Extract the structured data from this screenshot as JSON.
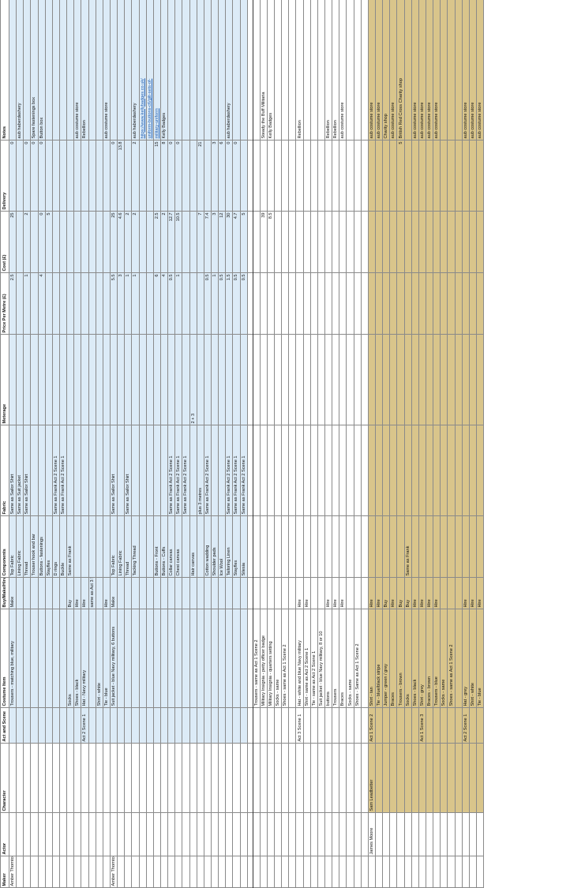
{
  "headers": [
    "Maker",
    "Actor",
    "Character",
    "Act and Scene",
    "Costume Item",
    "Buy/Make/Hire",
    "Components",
    "Fabric",
    "Meterage",
    "Price Per Metre (£)",
    "Cost (£)",
    "Delivery",
    "Notes"
  ],
  "rows": [
    {
      "s": "blue",
      "c": [
        "Amber Thornton",
        "",
        "",
        "",
        "Trousers - matching blue, military",
        "Make",
        "Top Fabric",
        "Same as Sailor Shirt",
        "",
        "2.5",
        "25",
        "0",
        ""
      ]
    },
    {
      "s": "blue",
      "c": [
        "",
        "",
        "",
        "",
        "",
        "",
        "Lining Fabric",
        "Same as Suit jacket",
        "",
        "",
        "",
        "",
        "aub haberdashery"
      ]
    },
    {
      "s": "blue",
      "c": [
        "",
        "",
        "",
        "",
        "",
        "",
        "Thread",
        "Same as Sailor Shirt",
        "",
        "1",
        "2",
        "0",
        ""
      ]
    },
    {
      "s": "blue",
      "c": [
        "",
        "",
        "",
        "",
        "",
        "",
        "Trouser hook and bar",
        "",
        "",
        "",
        "",
        "0",
        "Spare fastenings box"
      ]
    },
    {
      "s": "blue",
      "c": [
        "",
        "",
        "",
        "",
        "",
        "",
        "Buttons - fastenings",
        "",
        "",
        "4",
        "0",
        "0",
        "Button box"
      ]
    },
    {
      "s": "blue",
      "c": [
        "",
        "",
        "",
        "",
        "",
        "",
        "Stayflex",
        "",
        "",
        "",
        "5",
        "",
        ""
      ]
    },
    {
      "s": "blue",
      "c": [
        "",
        "",
        "",
        "",
        "",
        "",
        "D rings",
        "Same as Frank Act 2 Scene 1",
        "",
        "",
        "",
        "",
        ""
      ]
    },
    {
      "s": "blue",
      "c": [
        "",
        "",
        "",
        "",
        "",
        "",
        "Buckle",
        "Same as Frank Act 2 Scene 1",
        "",
        "",
        "",
        "",
        ""
      ]
    },
    {
      "s": "blue",
      "c": [
        "",
        "",
        "",
        "",
        "Socks",
        "Buy",
        "Same as Frank",
        "",
        "",
        "",
        "",
        "",
        ""
      ]
    },
    {
      "s": "blue",
      "c": [
        "",
        "",
        "",
        "",
        "Shoes - black",
        "Hire",
        "",
        "",
        "",
        "",
        "",
        "",
        "aub costume store"
      ]
    },
    {
      "s": "blue",
      "c": [
        "",
        "",
        "",
        "Act 2 Scene 1",
        "Hat - Navy military",
        "Hire",
        "",
        "",
        "",
        "",
        "",
        "",
        "Rebellion"
      ]
    },
    {
      "s": "blue",
      "c": [
        "",
        "",
        "",
        "",
        "",
        "same as Act 3 Scene 1",
        "",
        "",
        "",
        "",
        "",
        "",
        ""
      ]
    },
    {
      "s": "blue",
      "c": [
        "",
        "",
        "",
        "",
        "Shirt - white",
        "",
        "",
        "",
        "",
        "",
        "",
        "",
        ""
      ]
    },
    {
      "s": "blue",
      "c": [
        "",
        "",
        "",
        "",
        "Tie - blue",
        "Hire",
        "",
        "",
        "",
        "",
        "",
        "",
        "aub costume store"
      ]
    },
    {
      "s": "blue",
      "c": [
        "Amber Thornton",
        "",
        "",
        "",
        "Suit jacket - blue Navy military, 6 buttons",
        "Make",
        "Top Fabric",
        "Same as Sailor Shirt",
        "",
        "5.5",
        "25",
        "0",
        ""
      ]
    },
    {
      "s": "blue",
      "c": [
        "",
        "",
        "",
        "",
        "",
        "",
        "Lining Fabric",
        "",
        "",
        "3",
        "4.6",
        "13.8",
        ""
      ]
    },
    {
      "s": "blue",
      "c": [
        "",
        "",
        "",
        "",
        "",
        "",
        "Thread",
        "Same as Sailor Shirt",
        "",
        "1",
        "2",
        "",
        ""
      ]
    },
    {
      "s": "blue",
      "c": [
        "",
        "",
        "",
        "",
        "",
        "",
        "Tacking Thread",
        "",
        "",
        "1",
        "2",
        "2",
        "aub haberdashery"
      ]
    },
    {
      "s": "blue",
      "c": [
        "",
        "",
        "",
        "",
        "",
        "",
        "",
        "",
        "",
        "",
        "",
        "",
        "https://www.kellybadges.co.uk/"
      ]
    },
    {
      "s": "blue",
      "c": [
        "",
        "",
        "",
        "",
        "",
        "",
        "",
        "",
        "",
        "",
        "",
        "",
        "uniform-buttons-c6/gilt-sets-of-"
      ]
    },
    {
      "s": "blue",
      "c": [
        "",
        "",
        "",
        "",
        "",
        "",
        "Buttons - Front",
        "",
        "",
        "6",
        "2.5",
        "15",
        "military-uniform"
      ]
    },
    {
      "s": "blue",
      "c": [
        "",
        "",
        "",
        "",
        "",
        "",
        "Buttons - Cuffs",
        "",
        "",
        "4",
        "2",
        "8",
        "Kelly Badges"
      ]
    },
    {
      "s": "blue",
      "c": [
        "",
        "",
        "",
        "",
        "",
        "",
        "Collar canvas",
        "Same as Frank Act 2 Scene 1",
        "",
        "0.5",
        "12.7",
        "0",
        ""
      ]
    },
    {
      "s": "blue",
      "c": [
        "",
        "",
        "",
        "",
        "",
        "",
        "Chest canvas",
        "Same as Frank Act 2 Scene 1",
        "",
        "1",
        "10.5",
        "0",
        ""
      ]
    },
    {
      "s": "blue",
      "c": [
        "",
        "",
        "",
        "",
        "",
        "",
        "",
        "Same as Frank Act 2 Scene 1",
        "",
        "",
        "",
        "",
        ""
      ]
    },
    {
      "s": "blue",
      "c": [
        "",
        "",
        "",
        "",
        "",
        "",
        "Hair canvas",
        "",
        "2 + 3",
        "",
        "",
        "",
        ""
      ]
    },
    {
      "s": "blue",
      "c": [
        "",
        "",
        "",
        "",
        "",
        "",
        "",
        "plus 3 metres",
        "",
        "",
        "7",
        "21",
        ""
      ]
    },
    {
      "s": "blue",
      "c": [
        "",
        "",
        "",
        "",
        "",
        "",
        "Cotton wadding",
        "Same as Frank Act 2 Scene 1",
        "",
        "0.5",
        "7.4",
        "",
        ""
      ]
    },
    {
      "s": "blue",
      "c": [
        "",
        "",
        "",
        "",
        "",
        "",
        "Shoulder pads",
        "",
        "",
        "1",
        "3",
        "3",
        ""
      ]
    },
    {
      "s": "blue",
      "c": [
        "",
        "",
        "",
        "",
        "",
        "",
        "Ice Wool",
        "",
        "",
        "0.5",
        "12",
        "6",
        ""
      ]
    },
    {
      "s": "blue",
      "c": [
        "",
        "",
        "",
        "",
        "",
        "",
        "Tailoring Linen",
        "Same as Frank Act 2 Scene 1",
        "",
        "1.5",
        "30",
        "0",
        "aub haberdashery"
      ]
    },
    {
      "s": "blue",
      "c": [
        "",
        "",
        "",
        "",
        "",
        "",
        "Stayflex",
        "Same as Frank Act 2 Scene 1",
        "",
        "0.5",
        "4.7",
        "0",
        ""
      ]
    },
    {
      "s": "blue",
      "c": [
        "",
        "",
        "",
        "",
        "",
        "",
        "Silesia",
        "Same as Frank Act 2 Scene 1",
        "",
        "0.5",
        "5",
        "",
        ""
      ]
    },
    {
      "s": "sep",
      "c": [
        "",
        "",
        "",
        "",
        "",
        "",
        "",
        "",
        "",
        "",
        "",
        "",
        ""
      ]
    },
    {
      "s": "plain",
      "c": [
        "",
        "",
        "",
        "",
        "Trousers - same as Act 1 Scene 2",
        "",
        "",
        "",
        "",
        "",
        "",
        "",
        ""
      ]
    },
    {
      "s": "plain",
      "c": [
        "",
        "",
        "",
        "",
        "Military Insignia - petty officer badge",
        "",
        "",
        "",
        "",
        "",
        "39",
        "",
        "Steady the Buff Militaria"
      ]
    },
    {
      "s": "plain",
      "c": [
        "",
        "",
        "",
        "",
        "Military Insignia - quarters setting",
        "",
        "",
        "",
        "",
        "",
        "8.5",
        "",
        "Kelly Badges"
      ]
    },
    {
      "s": "plain",
      "c": [
        "",
        "",
        "",
        "",
        "Socks - same",
        "",
        "",
        "",
        "",
        "",
        "",
        "",
        ""
      ]
    },
    {
      "s": "plain",
      "c": [
        "",
        "",
        "",
        "",
        "Shoes - same as Act 1 Scene 2",
        "",
        "",
        "",
        "",
        "",
        "",
        "",
        ""
      ]
    },
    {
      "s": "plain",
      "c": [
        "",
        "",
        "",
        "",
        "",
        "",
        "",
        "",
        "",
        "",
        "",
        "",
        ""
      ]
    },
    {
      "s": "plain",
      "c": [
        "",
        "",
        "",
        "Act 3 Scene 1",
        "Hat - white and blue Navy military",
        "Hire",
        "",
        "",
        "",
        "",
        "",
        "",
        "Rebellion"
      ]
    },
    {
      "s": "plain",
      "c": [
        "",
        "",
        "",
        "",
        "Shirt - same as Act 2 Scene 1",
        "Hire",
        "",
        "",
        "",
        "",
        "",
        "",
        ""
      ]
    },
    {
      "s": "plain",
      "c": [
        "",
        "",
        "",
        "",
        "Tie - same as Act 2 Scene 1",
        "",
        "",
        "",
        "",
        "",
        "",
        "",
        ""
      ]
    },
    {
      "s": "plain",
      "c": [
        "",
        "",
        "",
        "",
        "Suit jacket - blue Navy military, 8 or 10",
        "",
        "",
        "",
        "",
        "",
        "",
        "",
        ""
      ]
    },
    {
      "s": "plain",
      "c": [
        "",
        "",
        "",
        "",
        "buttons",
        "Hire",
        "",
        "",
        "",
        "",
        "",
        "",
        "Rebellion"
      ]
    },
    {
      "s": "plain",
      "c": [
        "",
        "",
        "",
        "",
        "Trousers",
        "Hire",
        "",
        "",
        "",
        "",
        "",
        "",
        "Rebellion"
      ]
    },
    {
      "s": "plain",
      "c": [
        "",
        "",
        "",
        "",
        "Braces",
        "Hire",
        "",
        "",
        "",
        "",
        "",
        "",
        "aub costume store"
      ]
    },
    {
      "s": "plain",
      "c": [
        "",
        "",
        "",
        "",
        "Socks - same",
        "",
        "",
        "",
        "",
        "",
        "",
        "",
        ""
      ]
    },
    {
      "s": "plain",
      "c": [
        "",
        "",
        "",
        "",
        "Shoes - Same as Act 1 Scene 2",
        "",
        "",
        "",
        "",
        "",
        "",
        "",
        ""
      ]
    },
    {
      "s": "plain",
      "c": [
        "",
        "",
        "",
        "",
        "",
        "",
        "",
        "",
        "",
        "",
        "",
        "",
        ""
      ]
    },
    {
      "s": "gold",
      "c": [
        "",
        "James Moore",
        "Sam Leadbetter",
        "Act 1 Scene 2",
        "Shirt - tan",
        "Hire",
        "",
        "",
        "",
        "",
        "",
        "",
        "aub costume store"
      ]
    },
    {
      "s": "gold",
      "c": [
        "",
        "",
        "",
        "",
        "Tie - blue/black stripe",
        "Hire",
        "",
        "",
        "",
        "",
        "",
        "",
        "aub costume store"
      ]
    },
    {
      "s": "gold",
      "c": [
        "",
        "",
        "",
        "",
        "Jumper - green / grey",
        "Buy",
        "",
        "",
        "",
        "",
        "",
        "",
        "Charity shop"
      ]
    },
    {
      "s": "gold",
      "c": [
        "",
        "",
        "",
        "",
        "Braces",
        "Hire",
        "",
        "",
        "",
        "",
        "",
        "",
        "aub costume store"
      ]
    },
    {
      "s": "gold",
      "c": [
        "",
        "",
        "",
        "",
        "Trousers - brown",
        "Buy",
        "",
        "",
        "",
        "",
        "",
        "5",
        "British Red Cross Charity shop"
      ]
    },
    {
      "s": "gold",
      "c": [
        "",
        "",
        "",
        "",
        "Socks",
        "Buy",
        "Same as Frank",
        "",
        "",
        "",
        "",
        "",
        ""
      ]
    },
    {
      "s": "gold",
      "c": [
        "",
        "",
        "",
        "",
        "Shoes - black",
        "Hire",
        "",
        "",
        "",
        "",
        "",
        "",
        "aub costume store"
      ]
    },
    {
      "s": "gold",
      "c": [
        "",
        "",
        "",
        "Act 1 Scene 3",
        "Shirt - grey",
        "Hire",
        "",
        "",
        "",
        "",
        "",
        "",
        "aub costume store"
      ]
    },
    {
      "s": "gold",
      "c": [
        "",
        "",
        "",
        "",
        "Braces - brown",
        "Hire",
        "",
        "",
        "",
        "",
        "",
        "",
        "aub costume store"
      ]
    },
    {
      "s": "gold",
      "c": [
        "",
        "",
        "",
        "",
        "Trousers - blue",
        "Hire",
        "",
        "",
        "",
        "",
        "",
        "",
        "aub costume store"
      ]
    },
    {
      "s": "gold",
      "c": [
        "",
        "",
        "",
        "",
        "Socks - same",
        "",
        "",
        "",
        "",
        "",
        "",
        "",
        ""
      ]
    },
    {
      "s": "gold",
      "c": [
        "",
        "",
        "",
        "",
        "Shoes - same as Act 1 Scene 2",
        "",
        "",
        "",
        "",
        "",
        "",
        "",
        ""
      ]
    },
    {
      "s": "gold",
      "c": [
        "",
        "",
        "",
        "",
        "",
        "",
        "",
        "",
        "",
        "",
        "",
        "",
        ""
      ]
    },
    {
      "s": "gold",
      "c": [
        "",
        "",
        "",
        "Act 2 Scene 1",
        "Hat - grey",
        "Hire",
        "",
        "",
        "",
        "",
        "",
        "",
        "aub costume store"
      ]
    },
    {
      "s": "gold",
      "c": [
        "",
        "",
        "",
        "",
        "Shirt - white",
        "Hire",
        "",
        "",
        "",
        "",
        "",
        "",
        "aub costume store"
      ]
    },
    {
      "s": "gold",
      "c": [
        "",
        "",
        "",
        "",
        "Tie - blue",
        "Hire",
        "",
        "",
        "",
        "",
        "",
        "",
        "aub costume store"
      ]
    }
  ]
}
